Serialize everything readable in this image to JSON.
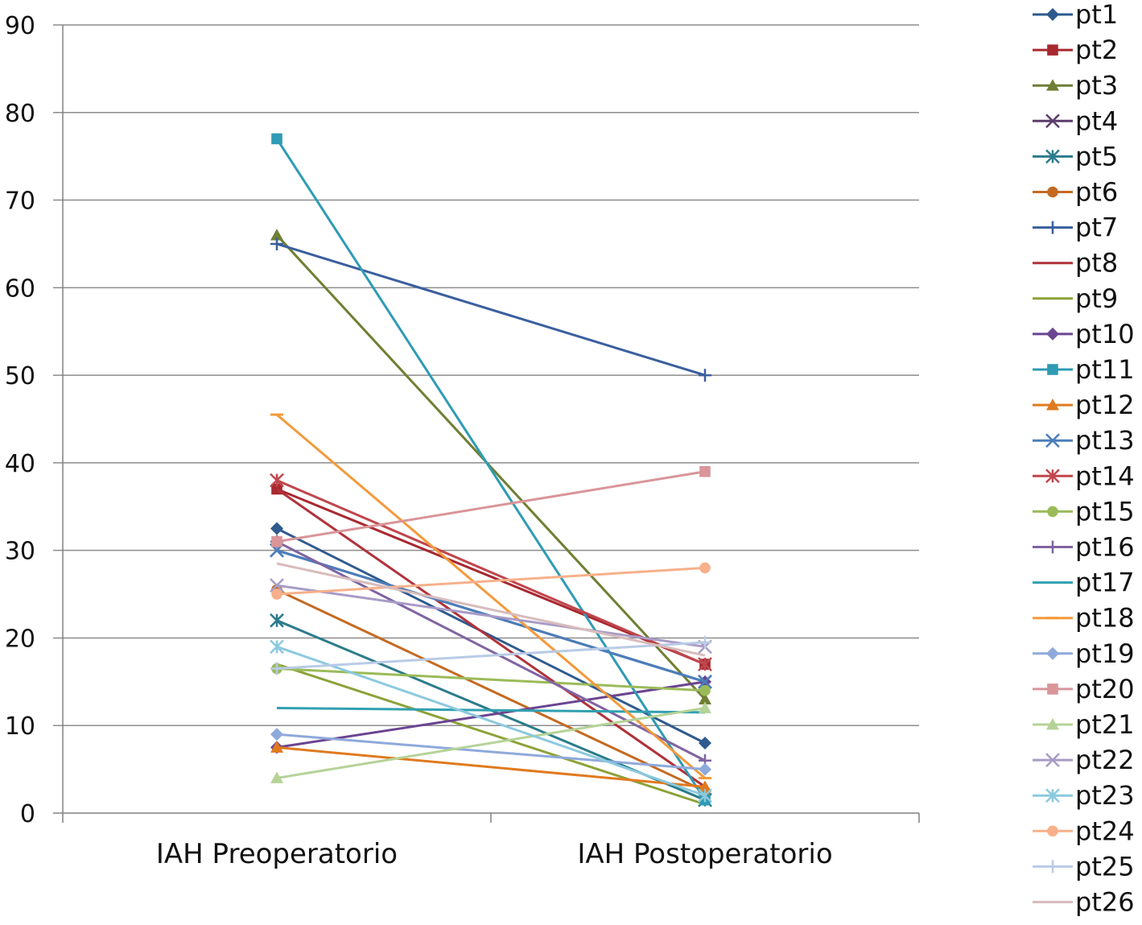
{
  "chart_data": {
    "type": "line",
    "title": "",
    "xlabel": "",
    "ylabel": "",
    "categories": [
      "IAH Preoperatorio",
      "IAH Postoperatorio"
    ],
    "ylim": [
      0,
      90
    ],
    "yticks": [
      0,
      10,
      20,
      30,
      40,
      50,
      60,
      70,
      80,
      90
    ],
    "grid": true,
    "legend_position": "right",
    "series": [
      {
        "name": "pt1",
        "values": [
          32.5,
          8
        ],
        "color": "#2E5A8E",
        "marker": "diamond"
      },
      {
        "name": "pt2",
        "values": [
          37,
          17
        ],
        "color": "#A8282F",
        "marker": "square"
      },
      {
        "name": "pt3",
        "values": [
          66,
          13
        ],
        "color": "#6F7F33",
        "marker": "triangle"
      },
      {
        "name": "pt4",
        "values": [
          30,
          15
        ],
        "color": "#5C3D6E",
        "marker": "x"
      },
      {
        "name": "pt5",
        "values": [
          22,
          1.5
        ],
        "color": "#2B7C8C",
        "marker": "asterisk"
      },
      {
        "name": "pt6",
        "values": [
          25.5,
          2.5
        ],
        "color": "#C46A22",
        "marker": "circle"
      },
      {
        "name": "pt7",
        "values": [
          65,
          50
        ],
        "color": "#3A5F9E",
        "marker": "plus"
      },
      {
        "name": "pt8",
        "values": [
          37,
          3
        ],
        "color": "#B0323A",
        "marker": "none"
      },
      {
        "name": "pt9",
        "values": [
          17,
          1
        ],
        "color": "#8CA238",
        "marker": "none"
      },
      {
        "name": "pt10",
        "values": [
          7.5,
          15
        ],
        "color": "#6B4591",
        "marker": "diamond"
      },
      {
        "name": "pt11",
        "values": [
          77,
          1.5
        ],
        "color": "#2F9BB4",
        "marker": "square"
      },
      {
        "name": "pt12",
        "values": [
          7.5,
          3
        ],
        "color": "#E07A1F",
        "marker": "triangle"
      },
      {
        "name": "pt13",
        "values": [
          30,
          15
        ],
        "color": "#4A7EBB",
        "marker": "x"
      },
      {
        "name": "pt14",
        "values": [
          38,
          17
        ],
        "color": "#C0464D",
        "marker": "asterisk"
      },
      {
        "name": "pt15",
        "values": [
          16.5,
          14
        ],
        "color": "#9BBB59",
        "marker": "circle"
      },
      {
        "name": "pt16",
        "values": [
          31,
          6
        ],
        "color": "#8064A2",
        "marker": "plus"
      },
      {
        "name": "pt17",
        "values": [
          12,
          11.5
        ],
        "color": "#31A0B0",
        "marker": "none"
      },
      {
        "name": "pt18",
        "values": [
          45.5,
          4
        ],
        "color": "#F39A3C",
        "marker": "dash"
      },
      {
        "name": "pt19",
        "values": [
          9,
          5
        ],
        "color": "#8EA9DB",
        "marker": "diamond"
      },
      {
        "name": "pt20",
        "values": [
          31,
          39
        ],
        "color": "#D9959A",
        "marker": "square"
      },
      {
        "name": "pt21",
        "values": [
          4,
          12
        ],
        "color": "#B5D397",
        "marker": "triangle"
      },
      {
        "name": "pt22",
        "values": [
          26,
          19
        ],
        "color": "#A89BC6",
        "marker": "x"
      },
      {
        "name": "pt23",
        "values": [
          19,
          2
        ],
        "color": "#8BC9DE",
        "marker": "asterisk"
      },
      {
        "name": "pt24",
        "values": [
          25,
          28
        ],
        "color": "#F7B08A",
        "marker": "circle"
      },
      {
        "name": "pt25",
        "values": [
          16.5,
          19.5
        ],
        "color": "#B9CBE6",
        "marker": "plus"
      },
      {
        "name": "pt26",
        "values": [
          28.5,
          18
        ],
        "color": "#D8BCBD",
        "marker": "none"
      }
    ]
  }
}
